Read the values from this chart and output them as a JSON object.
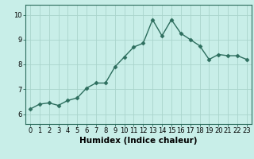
{
  "x": [
    0,
    1,
    2,
    3,
    4,
    5,
    6,
    7,
    8,
    9,
    10,
    11,
    12,
    13,
    14,
    15,
    16,
    17,
    18,
    19,
    20,
    21,
    22,
    23
  ],
  "y": [
    6.2,
    6.4,
    6.45,
    6.35,
    6.55,
    6.65,
    7.05,
    7.25,
    7.25,
    7.9,
    8.3,
    8.7,
    8.85,
    9.8,
    9.15,
    9.8,
    9.25,
    9.0,
    8.75,
    8.2,
    8.4,
    8.35,
    8.35,
    8.2
  ],
  "line_color": "#2d6e5e",
  "marker": "D",
  "markersize": 2.5,
  "linewidth": 1.0,
  "background_color": "#c8eee8",
  "grid_color": "#aad4cc",
  "xlabel": "Humidex (Indice chaleur)",
  "xlabel_fontsize": 7.5,
  "yticks": [
    6,
    7,
    8,
    9,
    10
  ],
  "ylim": [
    5.6,
    10.4
  ],
  "xlim": [
    -0.5,
    23.5
  ],
  "xticks": [
    0,
    1,
    2,
    3,
    4,
    5,
    6,
    7,
    8,
    9,
    10,
    11,
    12,
    13,
    14,
    15,
    16,
    17,
    18,
    19,
    20,
    21,
    22,
    23
  ],
  "tick_fontsize": 6,
  "spine_color": "#2d6e5e",
  "fig_bg": "#c8eee8"
}
